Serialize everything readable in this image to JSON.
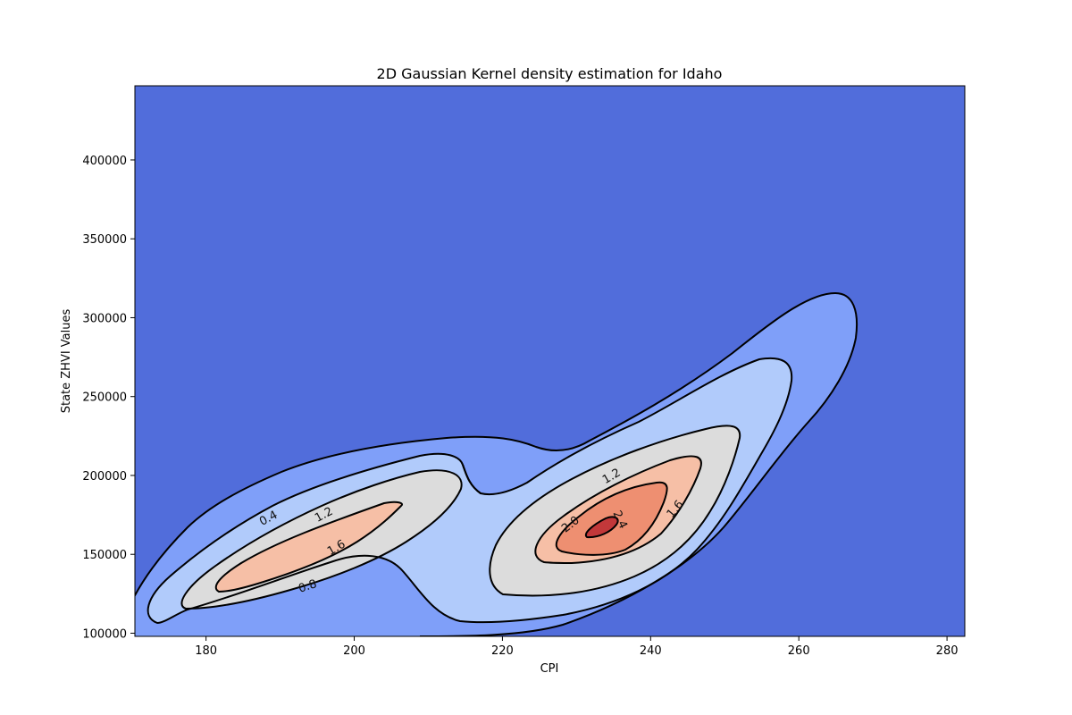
{
  "chart_data": {
    "type": "heatmap",
    "subtype": "filled-contour",
    "title": "2D Gaussian Kernel density estimation for Idaho",
    "xlabel": "CPI",
    "ylabel": "State ZHVI Values",
    "xlim": [
      170.4,
      282.4
    ],
    "ylim": [
      98000,
      447000
    ],
    "xticks": [
      "180",
      "200",
      "220",
      "240",
      "260",
      "280"
    ],
    "yticks": [
      "100000",
      "150000",
      "200000",
      "250000",
      "300000",
      "350000",
      "400000"
    ],
    "grid": false,
    "colormap": "coolwarm",
    "density_levels": [
      0.0,
      0.4,
      0.8,
      1.2,
      1.6,
      2.0,
      2.4
    ],
    "level_colors": {
      "background": "#516ddb",
      "0.4": "#7f9ff9",
      "0.8": "#b1cbfb",
      "1.2": "#dcdcdc",
      "1.6": "#f6bfa6",
      "2.0": "#ee8f71",
      "2.4": "#c2383a"
    },
    "contours": [
      {
        "level": 0.4,
        "label": "0.4",
        "points": [
          [
            170,
            122000
          ],
          [
            180,
            141000
          ],
          [
            190,
            160000
          ],
          [
            200,
            177000
          ],
          [
            206,
            188000
          ],
          [
            212,
            197000
          ],
          [
            220,
            205000
          ],
          [
            228,
            210000
          ],
          [
            234,
            212000
          ],
          [
            240,
            216000
          ],
          [
            248,
            228000
          ],
          [
            256,
            250000
          ],
          [
            262,
            270000
          ],
          [
            266,
            285000
          ],
          [
            268,
            296000
          ],
          [
            266,
            304000
          ],
          [
            260,
            307000
          ],
          [
            252,
            301000
          ],
          [
            245,
            285000
          ],
          [
            238,
            270000
          ],
          [
            232,
            262000
          ],
          [
            227,
            257000
          ],
          [
            222,
            254000
          ],
          [
            216,
            247000
          ],
          [
            208,
            239000
          ]
        ]
      },
      {
        "level": 0.8,
        "label": "0.8",
        "points": [
          [
            178,
            98000
          ],
          [
            190,
            111000
          ],
          [
            203,
            124000
          ],
          [
            212,
            127000
          ],
          [
            220,
            117000
          ],
          [
            232,
            117000
          ],
          [
            246,
            136000
          ],
          [
            256,
            161000
          ],
          [
            262,
            180000
          ],
          [
            267,
            208000
          ],
          [
            268,
            228000
          ]
        ]
      },
      {
        "level": 1.2,
        "label": "1.2",
        "points": [
          [
            176,
            118000
          ],
          [
            190,
            150000
          ],
          [
            203,
            175000
          ],
          [
            212,
            186000
          ],
          [
            217,
            182000
          ],
          [
            218,
            160000
          ],
          [
            222,
            141000
          ],
          [
            230,
            131000
          ],
          [
            240,
            136000
          ],
          [
            248,
            156000
          ],
          [
            255,
            190000
          ],
          [
            258,
            230000
          ],
          [
            256,
            257000
          ],
          [
            250,
            251000
          ],
          [
            242,
            236000
          ],
          [
            230,
            218000
          ]
        ]
      },
      {
        "level": 1.6,
        "label": "1.6",
        "points": [
          [
            184,
            131000
          ],
          [
            194,
            148000
          ],
          [
            202,
            164000
          ],
          [
            207,
            173000
          ],
          [
            203,
            176000
          ],
          [
            194,
            166000
          ],
          [
            186,
            152000
          ]
        ]
      },
      {
        "level": 2.0,
        "label": "2.0",
        "points": [
          [
            224,
            154000
          ],
          [
            232,
            164000
          ],
          [
            240,
            174000
          ],
          [
            246,
            183000
          ],
          [
            246,
            168000
          ],
          [
            240,
            153000
          ],
          [
            230,
            146000
          ]
        ]
      },
      {
        "level": 2.4,
        "label": "2.4",
        "points": [
          [
            231,
            163000
          ],
          [
            235,
            170000
          ],
          [
            238,
            173000
          ],
          [
            236,
            166000
          ]
        ]
      }
    ]
  }
}
